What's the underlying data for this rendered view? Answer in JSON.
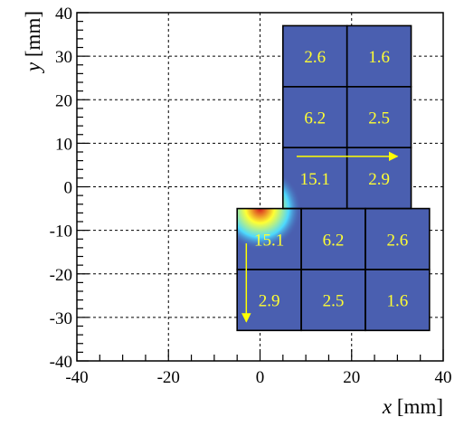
{
  "chart_data": {
    "type": "heatmap",
    "title": "",
    "xlabel": {
      "var": "x",
      "unit": " [mm]"
    },
    "ylabel": {
      "var": "y",
      "unit": " [mm]"
    },
    "xlim": [
      -40,
      40
    ],
    "ylim": [
      -40,
      40
    ],
    "x_ticks": [
      -40,
      -20,
      0,
      20,
      40
    ],
    "y_ticks": [
      -40,
      -30,
      -20,
      -10,
      0,
      10,
      20,
      30,
      40
    ],
    "grid": true,
    "colors": {
      "cell_fill": "#4a5fb0",
      "cell_border": "#000000",
      "value_text": "#ffff33",
      "hotspot_red": "#d7191c",
      "hotspot_yellow": "#ffff33",
      "hotspot_cyan": "#4dd9ff"
    },
    "hotspot": {
      "x": 0,
      "y": -5,
      "radius": 9
    },
    "cells": [
      {
        "x0": 5,
        "x1": 19,
        "y0": 23,
        "y1": 37,
        "value": "2.6"
      },
      {
        "x0": 19,
        "x1": 33,
        "y0": 23,
        "y1": 37,
        "value": "1.6"
      },
      {
        "x0": 5,
        "x1": 19,
        "y0": 9,
        "y1": 23,
        "value": "6.2"
      },
      {
        "x0": 19,
        "x1": 33,
        "y0": 9,
        "y1": 23,
        "value": "2.5"
      },
      {
        "x0": 5,
        "x1": 19,
        "y0": -5,
        "y1": 9,
        "value": "15.1"
      },
      {
        "x0": 19,
        "x1": 33,
        "y0": -5,
        "y1": 9,
        "value": "2.9"
      },
      {
        "x0": -5,
        "x1": 9,
        "y0": -19,
        "y1": -5,
        "value": "15.1"
      },
      {
        "x0": 9,
        "x1": 23,
        "y0": -19,
        "y1": -5,
        "value": "6.2"
      },
      {
        "x0": 23,
        "x1": 37,
        "y0": -19,
        "y1": -5,
        "value": "2.6"
      },
      {
        "x0": -5,
        "x1": 9,
        "y0": -33,
        "y1": -19,
        "value": "2.9"
      },
      {
        "x0": 9,
        "x1": 23,
        "y0": -33,
        "y1": -19,
        "value": "2.5"
      },
      {
        "x0": 23,
        "x1": 37,
        "y0": -33,
        "y1": -19,
        "value": "1.6"
      }
    ],
    "arrows": [
      {
        "from": [
          8,
          7
        ],
        "to": [
          30,
          7
        ]
      },
      {
        "from": [
          -3,
          -13
        ],
        "to": [
          -3,
          -31
        ]
      }
    ]
  }
}
